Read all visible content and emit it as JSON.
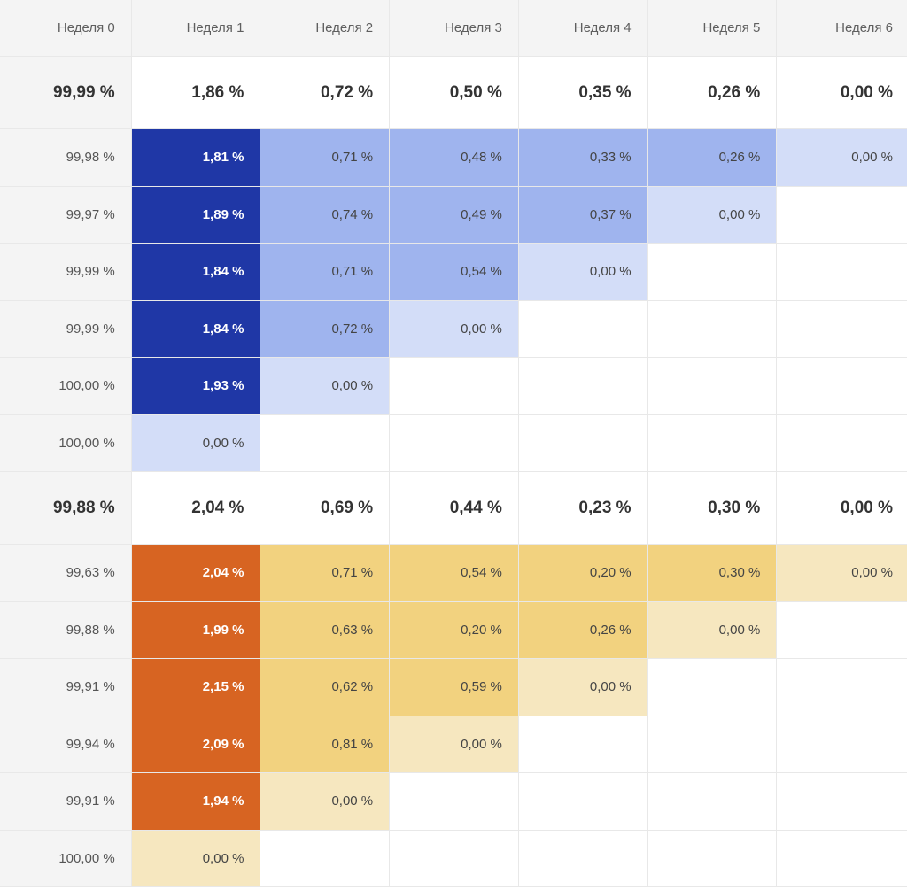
{
  "chart_data": {
    "type": "heatmap",
    "title": "",
    "columns": [
      "Неделя 0",
      "Неделя 1",
      "Неделя 2",
      "Неделя 3",
      "Неделя 4",
      "Неделя 5",
      "Неделя 6"
    ],
    "unit": "%",
    "colors": {
      "blue_dark": "#1f37a6",
      "blue_mid": "#9fb4ee",
      "blue_light": "#d3ddf8",
      "orange_dark": "#d76422",
      "yellow_mid": "#f2d27f",
      "yellow_light": "#f6e7bf",
      "header_bg": "#f4f4f4",
      "border": "#e8e8e8"
    },
    "groups": [
      {
        "summary": [
          "99,99 %",
          "1,86 %",
          "0,72 %",
          "0,50 %",
          "0,35 %",
          "0,26 %",
          "0,00 %"
        ],
        "rows": [
          [
            "99,98 %",
            "1,81 %",
            "0,71 %",
            "0,48 %",
            "0,33 %",
            "0,26 %",
            "0,00 %"
          ],
          [
            "99,97 %",
            "1,89 %",
            "0,74 %",
            "0,49 %",
            "0,37 %",
            "0,00 %"
          ],
          [
            "99,99 %",
            "1,84 %",
            "0,71 %",
            "0,54 %",
            "0,00 %"
          ],
          [
            "99,99 %",
            "1,84 %",
            "0,72 %",
            "0,00 %"
          ],
          [
            "100,00 %",
            "1,93 %",
            "0,00 %"
          ],
          [
            "100,00 %",
            "0,00 %"
          ]
        ],
        "palette": "blue"
      },
      {
        "summary": [
          "99,88 %",
          "2,04 %",
          "0,69 %",
          "0,44 %",
          "0,23 %",
          "0,30 %",
          "0,00 %"
        ],
        "rows": [
          [
            "99,63 %",
            "2,04 %",
            "0,71 %",
            "0,54 %",
            "0,20 %",
            "0,30 %",
            "0,00 %"
          ],
          [
            "99,88 %",
            "1,99 %",
            "0,63 %",
            "0,20 %",
            "0,26 %",
            "0,00 %"
          ],
          [
            "99,91 %",
            "2,15 %",
            "0,62 %",
            "0,59 %",
            "0,00 %"
          ],
          [
            "99,94 %",
            "2,09 %",
            "0,81 %",
            "0,00 %"
          ],
          [
            "99,91 %",
            "1,94 %",
            "0,00 %"
          ],
          [
            "100,00 %",
            "0,00 %"
          ]
        ],
        "palette": "orange"
      }
    ]
  }
}
